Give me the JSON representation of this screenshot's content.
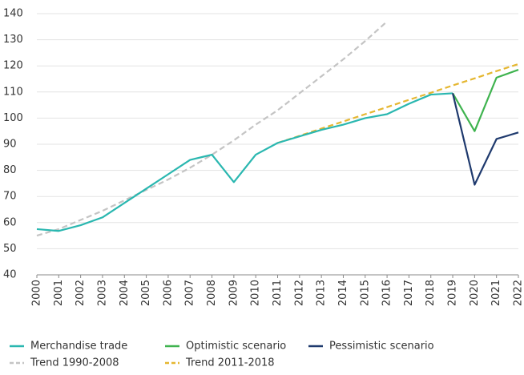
{
  "chart_data": {
    "type": "line",
    "categories": [
      "2000",
      "2001",
      "2002",
      "2003",
      "2004",
      "2005",
      "2006",
      "2007",
      "2008",
      "2009",
      "2010",
      "2011",
      "2012",
      "2013",
      "2014",
      "2015",
      "2016",
      "2017",
      "2018",
      "2019",
      "2020",
      "2021",
      "2022"
    ],
    "ylim": [
      40,
      140
    ],
    "yticks": [
      40,
      50,
      60,
      70,
      80,
      90,
      100,
      110,
      120,
      130,
      140
    ],
    "grid": true,
    "legend": "bottom",
    "series": [
      {
        "name": "Merchandise trade",
        "color": "#2ab7b0",
        "dashed": false,
        "values": [
          57.5,
          56.8,
          59,
          62,
          67.5,
          73,
          78.5,
          84,
          86,
          75.5,
          86,
          90.5,
          93,
          95.5,
          97.5,
          100,
          101.5,
          105.5,
          109,
          109.5,
          null,
          null,
          null
        ]
      },
      {
        "name": "Optimistic scenario",
        "color": "#3fb34f",
        "dashed": false,
        "values": [
          null,
          null,
          null,
          null,
          null,
          null,
          null,
          null,
          null,
          null,
          null,
          null,
          null,
          null,
          null,
          null,
          null,
          null,
          null,
          109.5,
          95,
          115.5,
          118.5
        ]
      },
      {
        "name": "Pessimistic scenario",
        "color": "#1f3a6e",
        "dashed": false,
        "values": [
          null,
          null,
          null,
          null,
          null,
          null,
          null,
          null,
          null,
          null,
          null,
          null,
          null,
          null,
          null,
          null,
          null,
          null,
          null,
          109.5,
          74.5,
          92,
          94.5
        ]
      },
      {
        "name": "Trend 1990-2008",
        "color": "#c4c4c4",
        "dashed": true,
        "values": [
          55,
          57.5,
          61,
          64.5,
          68.5,
          72.5,
          76.5,
          81,
          86,
          91.5,
          97.5,
          103,
          109.5,
          116,
          122.5,
          129.5,
          137,
          null,
          null,
          null,
          null,
          null,
          null
        ]
      },
      {
        "name": "Trend 2011-2018",
        "color": "#e5b731",
        "dashed": true,
        "values": [
          null,
          null,
          null,
          null,
          null,
          null,
          null,
          null,
          null,
          null,
          null,
          90.5,
          93.2,
          96,
          98.7,
          101.5,
          104.2,
          107,
          109.7,
          112.5,
          115.2,
          118,
          120.7
        ]
      }
    ]
  }
}
